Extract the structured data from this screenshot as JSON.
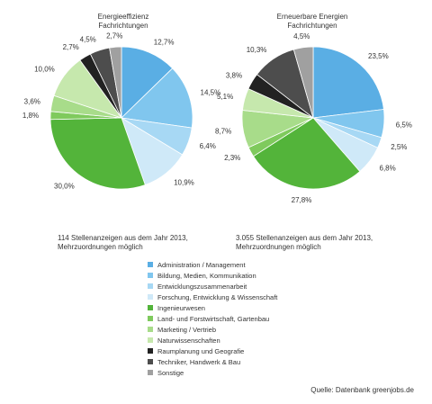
{
  "categories": [
    "Administration / Management",
    "Bildung, Medien, Kommunikation",
    "Entwicklungszusammenarbeit",
    "Forschung, Entwicklung & Wissenschaft",
    "Ingenieurwesen",
    "Land- und Forstwirtschaft, Gartenbau",
    "Marketing / Vertrieb",
    "Naturwissenschaften",
    "Raumplanung und Geografie",
    "Techniker, Handwerk & Bau",
    "Sonstige"
  ],
  "colors": [
    "#5aaee4",
    "#80c6ee",
    "#a7d8f4",
    "#cfe9f8",
    "#53b43a",
    "#7fca5d",
    "#a8dc8a",
    "#c6e8ad",
    "#222222",
    "#4d4d4d",
    "#a0a0a0"
  ],
  "chart_data": [
    {
      "type": "pie",
      "title": "Energieeffizienz Fachrichtungen",
      "title_lines": [
        "Energieeffizienz",
        "Fachrichtungen"
      ],
      "labels": [
        "12,7%",
        "14,5%",
        "6,4%",
        "10,9%",
        "30,0%",
        "1,8%",
        "3,6%",
        "10,0%",
        "2,7%",
        "4,5%",
        "2,7%"
      ],
      "values": [
        12.7,
        14.5,
        6.4,
        10.9,
        30.0,
        1.8,
        3.6,
        10.0,
        2.7,
        4.5,
        2.7
      ],
      "note_lines": [
        "114 Stellenanzeigen aus dem Jahr 2013,",
        "Mehrzuordnungen möglich"
      ]
    },
    {
      "type": "pie",
      "title": "Erneuerbare Energien Fachrichtungen",
      "title_lines": [
        "Erneuerbare Energien",
        "Fachrichtungen"
      ],
      "labels": [
        "23,5%",
        "6,5%",
        "2,5%",
        "6,8%",
        "27,8%",
        "2,3%",
        "8,7%",
        "5,1%",
        "3,8%",
        "10,3%",
        "4,5%"
      ],
      "values": [
        23.5,
        6.5,
        2.5,
        6.8,
        27.8,
        2.3,
        8.7,
        5.1,
        3.8,
        10.3,
        4.5
      ],
      "note_lines": [
        "3.055 Stellenanzeigen aus dem Jahr 2013,",
        "Mehrzuordnungen möglich"
      ]
    }
  ],
  "legend_placement": "bottom-center",
  "source": "Quelle: Datenbank greenjobs.de"
}
